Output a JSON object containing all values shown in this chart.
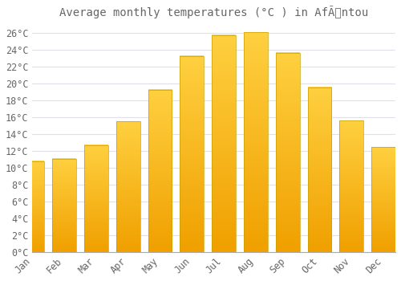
{
  "title": "Average monthly temperatures (°C ) in AfÃntou",
  "months": [
    "Jan",
    "Feb",
    "Mar",
    "Apr",
    "May",
    "Jun",
    "Jul",
    "Aug",
    "Sep",
    "Oct",
    "Nov",
    "Dec"
  ],
  "values": [
    10.8,
    11.1,
    12.7,
    15.5,
    19.3,
    23.3,
    25.8,
    26.1,
    23.7,
    19.6,
    15.6,
    12.5
  ],
  "bar_color_top": "#FFD040",
  "bar_color_bottom": "#F0A000",
  "bar_edge_color": "#C8A000",
  "background_color": "#FFFFFF",
  "grid_color": "#E0E0E8",
  "text_color": "#666666",
  "ylim": [
    0,
    27
  ],
  "ytick_step": 2,
  "title_fontsize": 10,
  "tick_fontsize": 8.5
}
